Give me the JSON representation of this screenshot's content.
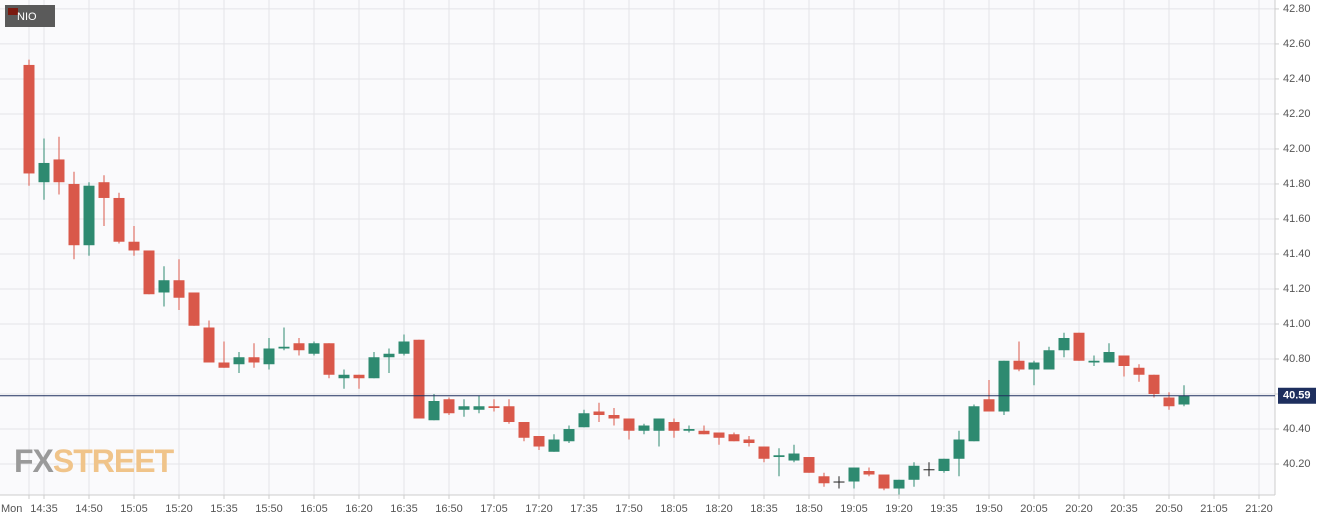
{
  "chart_data": {
    "type": "candlestick",
    "legend_label": "NIO",
    "watermark": [
      "FX",
      "STREET"
    ],
    "categories": [
      "Mon",
      "14:35",
      null,
      null,
      "14:50",
      null,
      null,
      "15:05",
      null,
      null,
      "15:20",
      null,
      null,
      "15:35",
      null,
      null,
      "15:50",
      null,
      null,
      "16:05",
      null,
      null,
      "16:20",
      null,
      null,
      "16:35",
      null,
      null,
      "16:50",
      null,
      null,
      "17:05",
      null,
      null,
      "17:20",
      null,
      null,
      "17:35",
      null,
      null,
      "17:50",
      null,
      null,
      "18:05",
      null,
      null,
      "18:20",
      null,
      null,
      "18:35",
      null,
      null,
      "18:50",
      null,
      null,
      "19:05",
      null,
      null,
      "19:20",
      null,
      null,
      "19:35",
      null,
      null,
      "19:50",
      null,
      null,
      "20:05",
      null,
      null,
      "20:20",
      null,
      null,
      "20:35",
      null,
      null,
      "20:50",
      null,
      null,
      "21:05",
      null,
      null,
      "21:20"
    ],
    "open": [
      42.48,
      41.81,
      41.94,
      41.8,
      41.45,
      41.81,
      41.72,
      41.47,
      41.42,
      41.18,
      41.25,
      41.18,
      40.98,
      40.78,
      40.77,
      40.81,
      40.77,
      40.86,
      40.89,
      40.83,
      40.89,
      40.69,
      40.71,
      40.69,
      40.81,
      40.83,
      40.91,
      40.45,
      40.57,
      40.51,
      40.51,
      40.53,
      40.53,
      40.44,
      40.36,
      40.27,
      40.33,
      40.41,
      40.5,
      40.48,
      40.46,
      40.39,
      40.39,
      40.44,
      40.39,
      40.39,
      40.38,
      40.37,
      40.34,
      40.3,
      40.24,
      40.22,
      40.24,
      40.13,
      40.1,
      40.1,
      40.16,
      40.14,
      40.06,
      40.11,
      40.17,
      40.16,
      40.23,
      40.33,
      40.57,
      40.5,
      40.79,
      40.74,
      40.74,
      40.85,
      40.95,
      40.78,
      40.78,
      40.82,
      40.75,
      40.71,
      40.58,
      40.54,
      null,
      null,
      null,
      null,
      null
    ],
    "high": [
      42.51,
      42.06,
      42.07,
      41.87,
      41.81,
      41.85,
      41.75,
      41.56,
      41.42,
      41.33,
      41.37,
      41.18,
      41.02,
      40.9,
      40.84,
      40.89,
      40.92,
      40.98,
      40.92,
      40.9,
      40.89,
      40.74,
      40.71,
      40.84,
      40.86,
      40.94,
      40.91,
      40.6,
      40.58,
      40.57,
      40.59,
      40.57,
      40.57,
      40.44,
      40.36,
      40.37,
      40.42,
      40.51,
      40.55,
      40.52,
      40.46,
      40.43,
      40.46,
      40.46,
      40.42,
      40.42,
      40.38,
      40.38,
      40.36,
      40.3,
      40.29,
      40.31,
      40.24,
      40.15,
      40.13,
      40.18,
      40.18,
      40.14,
      40.11,
      40.21,
      40.21,
      40.23,
      40.39,
      40.54,
      40.68,
      40.79,
      40.9,
      40.79,
      40.87,
      40.95,
      40.95,
      40.82,
      40.89,
      40.82,
      40.77,
      40.71,
      40.61,
      40.65,
      null,
      null,
      null,
      null,
      null
    ],
    "low": [
      41.79,
      41.71,
      41.74,
      41.37,
      41.39,
      41.56,
      41.46,
      41.39,
      41.17,
      41.1,
      41.08,
      40.99,
      40.78,
      40.75,
      40.72,
      40.75,
      40.74,
      40.85,
      40.82,
      40.82,
      40.69,
      40.63,
      40.63,
      40.69,
      40.72,
      40.82,
      40.46,
      40.45,
      40.48,
      40.47,
      40.49,
      40.5,
      40.43,
      40.33,
      40.28,
      40.27,
      40.32,
      40.41,
      40.44,
      40.42,
      40.34,
      40.37,
      40.3,
      40.35,
      40.38,
      40.37,
      40.31,
      40.33,
      40.3,
      40.21,
      40.13,
      40.21,
      40.15,
      40.07,
      40.06,
      40.06,
      40.13,
      40.05,
      40.02,
      40.07,
      40.13,
      40.15,
      40.13,
      40.33,
      40.5,
      40.48,
      40.73,
      40.65,
      40.74,
      40.81,
      40.79,
      40.76,
      40.78,
      40.7,
      40.67,
      40.58,
      40.51,
      40.53,
      null,
      null,
      null,
      null,
      null
    ],
    "close": [
      41.86,
      41.92,
      41.81,
      41.45,
      41.79,
      41.72,
      41.47,
      41.42,
      41.17,
      41.25,
      41.15,
      40.99,
      40.78,
      40.75,
      40.81,
      40.78,
      40.86,
      40.87,
      40.85,
      40.89,
      40.71,
      40.71,
      40.69,
      40.81,
      40.83,
      40.9,
      40.46,
      40.56,
      40.49,
      40.53,
      40.53,
      40.52,
      40.44,
      40.35,
      40.3,
      40.34,
      40.4,
      40.49,
      40.48,
      40.46,
      40.39,
      40.42,
      40.46,
      40.39,
      40.4,
      40.37,
      40.35,
      40.33,
      40.32,
      40.23,
      40.25,
      40.26,
      40.15,
      40.09,
      40.1,
      40.18,
      40.14,
      40.06,
      40.11,
      40.19,
      40.17,
      40.23,
      40.34,
      40.53,
      40.5,
      40.79,
      40.74,
      40.78,
      40.85,
      40.92,
      40.79,
      40.79,
      40.84,
      40.76,
      40.71,
      40.6,
      40.53,
      40.59,
      null,
      null,
      null,
      null,
      null
    ],
    "up_color": "#2e8a70",
    "down_color": "#d9584a",
    "last_price": 40.59,
    "last_price_color": "#1e2f5e",
    "ylim": [
      40.023,
      42.851
    ],
    "yticks": [
      {
        "value": 40.2,
        "label": "40.20"
      },
      {
        "value": 40.4,
        "label": "40.40"
      },
      {
        "value": 40.6,
        "label": "40.60"
      },
      {
        "value": 40.8,
        "label": "40.80"
      },
      {
        "value": 41.0,
        "label": "41.00"
      },
      {
        "value": 41.2,
        "label": "41.20"
      },
      {
        "value": 41.4,
        "label": "41.40"
      },
      {
        "value": 41.6,
        "label": "41.60"
      },
      {
        "value": 41.8,
        "label": "41.80"
      },
      {
        "value": 42.0,
        "label": "42.00"
      },
      {
        "value": 42.2,
        "label": "42.20"
      },
      {
        "value": 42.4,
        "label": "42.40"
      },
      {
        "value": 42.6,
        "label": "42.60"
      },
      {
        "value": 42.8,
        "label": "42.80"
      }
    ],
    "grid": true
  }
}
